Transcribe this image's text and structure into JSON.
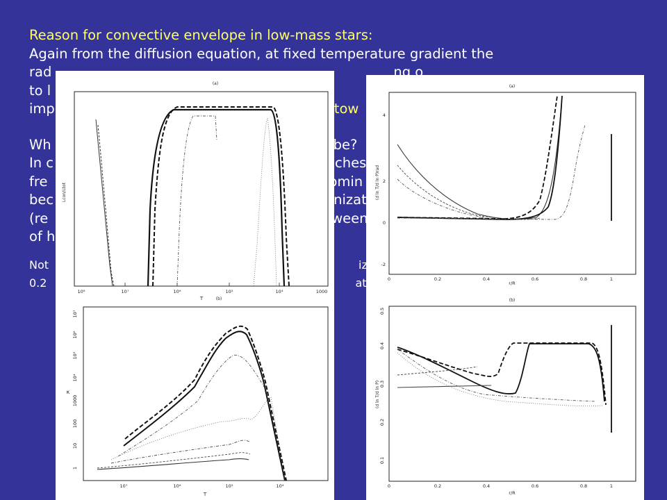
{
  "slide": {
    "heading": "Reason for convective envelope in low-mass stars:",
    "lines": [
      "Again from the diffusion equation, at fixed temperature gradient the",
      "rad",
      "ng o",
      "to l",
      "imp",
      "tow",
      "Wh",
      "be?",
      "In c",
      "ches",
      "fre",
      "omin",
      "bec",
      "nizat",
      "(re",
      "ween",
      "of h"
    ],
    "note_lines": [
      "Not",
      "ized",
      "0.2",
      "ation"
    ]
  },
  "figure_left": {
    "panel_a": {
      "label": "(a)",
      "ylabel": "Lcon/Ltot",
      "xlabel": "T",
      "x_ticks": [
        "10⁸",
        "10⁷",
        "10⁶",
        "10⁵",
        "10⁴",
        "1000"
      ]
    },
    "panel_b": {
      "label": "(b)",
      "ylabel": "κ",
      "xlabel": "T",
      "x_ticks": [
        "10⁷",
        "10⁶",
        "10⁵",
        "10⁴"
      ],
      "y_ticks": [
        "10⁷",
        "10⁶",
        "10⁵",
        "10⁴",
        "1000",
        "100",
        "10",
        "1"
      ]
    }
  },
  "figure_right": {
    "panel_a": {
      "label": "(a)",
      "ylabel": "(d ln T/d ln P)rad",
      "xlabel": "r/R",
      "x_ticks": [
        "0",
        "0.2",
        "0.4",
        "0.6",
        "0.8",
        "1"
      ],
      "y_ticks": [
        "4",
        "2",
        "0",
        "-2"
      ]
    },
    "panel_b": {
      "label": "(b)",
      "ylabel": "(d ln T/d ln P)",
      "xlabel": "r/R",
      "x_ticks": [
        "0",
        "0.2",
        "0.4",
        "0.6",
        "0.8",
        "1"
      ],
      "y_ticks": [
        "0.5",
        "0.4",
        "0.3",
        "0.2",
        "0.1"
      ]
    }
  },
  "colors": {
    "background": "#333399",
    "text": "#ffffff",
    "highlight": "#ffff66"
  }
}
